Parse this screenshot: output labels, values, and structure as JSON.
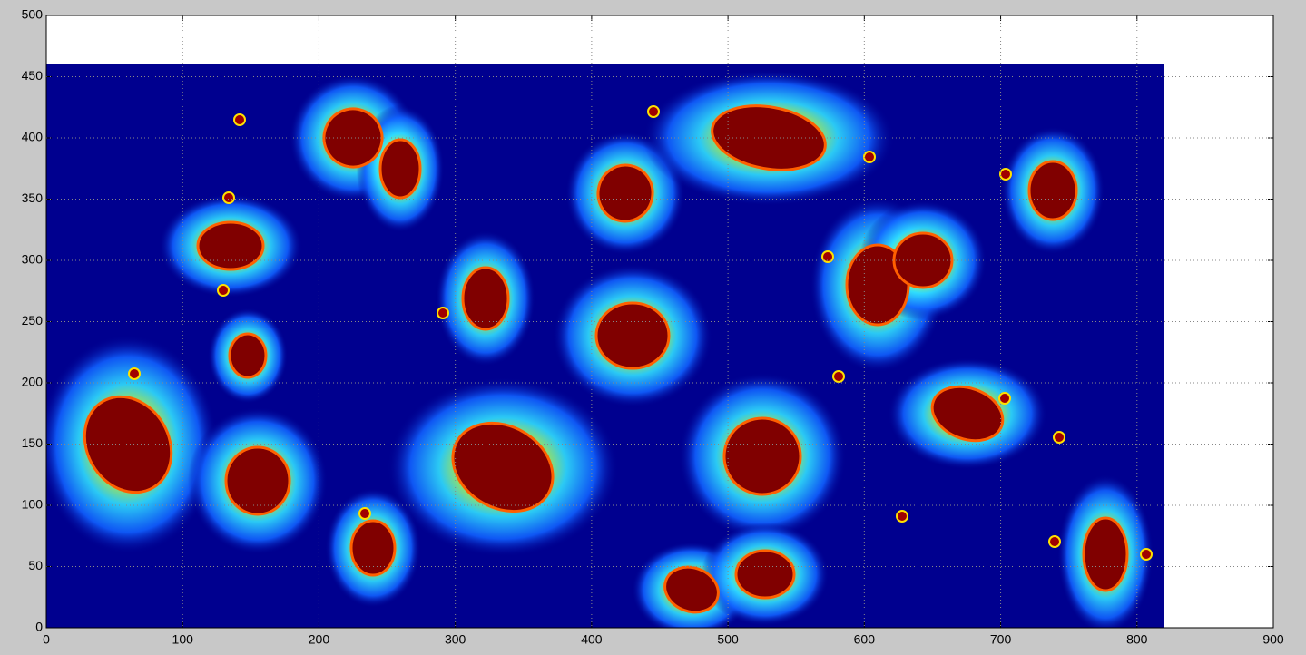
{
  "chart_data": {
    "type": "image",
    "xlim": [
      0,
      900
    ],
    "ylim": [
      0,
      500
    ],
    "xticks": [
      0,
      100,
      200,
      300,
      400,
      500,
      600,
      700,
      800,
      900
    ],
    "yticks": [
      0,
      50,
      100,
      150,
      200,
      250,
      300,
      350,
      400,
      450,
      500
    ],
    "image_xlim": [
      0,
      820
    ],
    "image_ylim": [
      0,
      460
    ],
    "grid": true
  }
}
